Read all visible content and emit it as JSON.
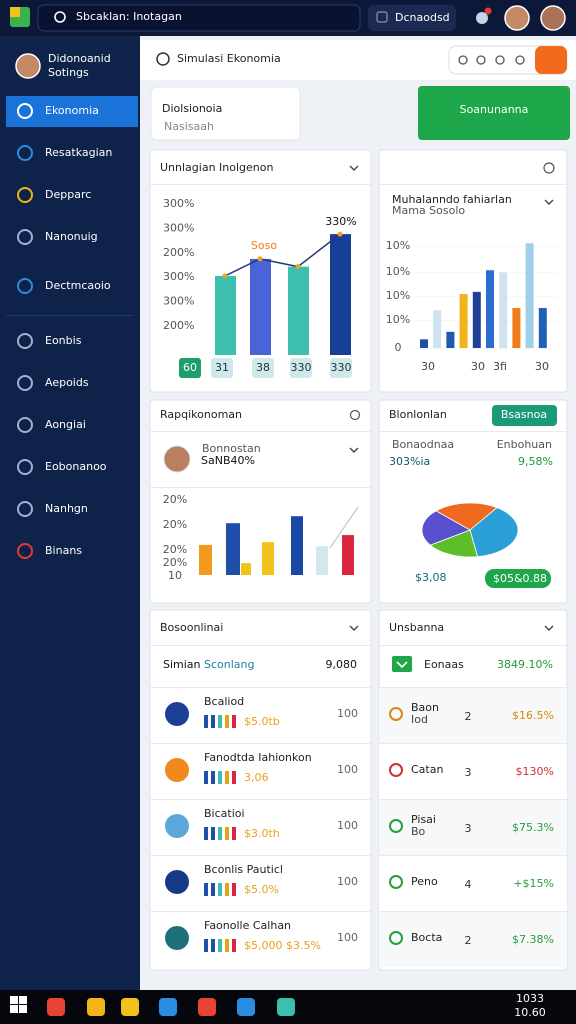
{
  "topbar": {
    "search": "Sbcaklan: Inotagan",
    "button": "Dcnaodsd"
  },
  "sidebar": {
    "profile_name": "Didonoanid",
    "profile_sub": "Sotings",
    "menu": [
      "Ekonomia",
      "Resatkagian",
      "Depparc",
      "Nanonuig",
      "Dectmcaoio",
      "Eonbis",
      "Aepoids",
      "Aongiai",
      "Eobonanoo",
      "Nanhgn",
      "Binans"
    ]
  },
  "header": {
    "title": "Simulasi Ekonomia"
  },
  "page": {
    "title": "Diolsionoia",
    "subtitle": "Nasisaah",
    "button": "Soanunanna"
  },
  "card1": {
    "title": "Unnlagian Inolgenon",
    "axis_labels": [
      "300%",
      "300%",
      "200%",
      "300%",
      "300%",
      "200%"
    ],
    "ylim": [
      0,
      100
    ],
    "values": [
      51,
      62,
      57,
      78
    ],
    "colors": [
      "#3cbfae",
      "#4a63d6",
      "#3cbfae",
      "#173f96"
    ],
    "annotations": [
      "Soso",
      "330%"
    ],
    "x_labels": [
      "60",
      "31",
      "38",
      "330",
      "330"
    ]
  },
  "card2": {
    "title": "Muhalanndo fahiarlan",
    "subtitle": "Mama Sosolo",
    "axis_labels": [
      "10%",
      "10%",
      "10%",
      "10%",
      "0"
    ],
    "ylim": [
      0,
      100
    ],
    "values": [
      8,
      35,
      15,
      50,
      52,
      72,
      70,
      37,
      97,
      37
    ],
    "colors": [
      "#1f4fa8",
      "#cfe3ef",
      "#2158b0",
      "#f2b31b",
      "#1e3f96",
      "#2c6ed0",
      "#cfe3ef",
      "#f07c1a",
      "#9ed0ec",
      "#2060b8"
    ],
    "x_labels": [
      "30",
      "30",
      "3fi",
      "30"
    ]
  },
  "card3": {
    "title": "Rapqikonoman",
    "person_label": "Bonnostan",
    "person_value": "SaNB40%",
    "axis_labels": [
      "20%",
      "20%",
      "20%",
      "20%",
      "10"
    ],
    "ylim": [
      0,
      100
    ],
    "values": [
      43,
      74,
      17,
      47,
      84,
      41,
      57
    ],
    "colors": [
      "#f39a1e",
      "#1f4fa8",
      "#f2c21b",
      "#f2c21b",
      "#1a48a6",
      "#d4e6ee",
      "#d7263d"
    ]
  },
  "card4": {
    "title": "Blonlonlan",
    "button": "Bsasnoa",
    "left_label": "Bonaodnaa",
    "left_value": "303%ia",
    "right_label": "Enbohuan",
    "right_value": "9,58%",
    "pie_values": [
      22,
      38,
      18,
      22
    ],
    "pie_colors": [
      "#ef6a1e",
      "#2a9fd8",
      "#5cbf2a",
      "#5a4fcf"
    ],
    "footer_value": "$3,08",
    "footer_button": "$05&0.88"
  },
  "card5": {
    "title": "Bosoonlinai",
    "head_label": "Simian",
    "head_tag": "Sconlang",
    "head_value": "9,080",
    "items": [
      {
        "title": "Bcaliod",
        "value": "$5.0tb",
        "num": "100",
        "color": "#1a3f95"
      },
      {
        "title": "Fanodtda Iahionkon",
        "value": "3,06",
        "num": "100",
        "color": "#f08a1e"
      },
      {
        "title": "Bicatioi",
        "value": "$3.0th",
        "num": "100",
        "color": "#5aa7d8"
      },
      {
        "title": "Bconlis Pauticl",
        "value": "$5.0%",
        "num": "100",
        "color": "#163a8a"
      },
      {
        "title": "Faonolle Calhan",
        "value": "$5,000 $3.5%",
        "num": "100",
        "color": "#1f6f7a"
      }
    ]
  },
  "card6": {
    "title": "Unsbanna",
    "head_label": "Eonaas",
    "head_value": "3849.10%",
    "rows": [
      {
        "label": "Baon",
        "sub": "Iod",
        "n": "2",
        "value": "$16.5%",
        "color": "#d98a0a"
      },
      {
        "label": "Catan",
        "n": "3",
        "value": "$130%",
        "color": "#d03030"
      },
      {
        "label": "Pisai",
        "sub": "Bo",
        "n": "3",
        "value": "$75.3%",
        "color": "#2a9d3a"
      },
      {
        "label": "Peno",
        "n": "4",
        "value": "+$15%",
        "color": "#2a9d3a"
      },
      {
        "label": "Bocta",
        "n": "2",
        "value": "$7.38%",
        "color": "#2a9d3a"
      }
    ]
  },
  "taskbar": {
    "time": "1033",
    "date": "10.60"
  }
}
